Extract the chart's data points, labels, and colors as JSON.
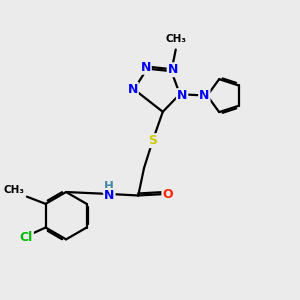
{
  "background_color": "#ebebeb",
  "atom_colors": {
    "N": "#0000ff",
    "S": "#cccc00",
    "O": "#ff2200",
    "Cl": "#00bb00",
    "C": "#000000",
    "H": "#4488aa"
  },
  "bond_color": "#000000",
  "bond_width": 1.6,
  "figsize": [
    3.0,
    3.0
  ],
  "dpi": 100
}
